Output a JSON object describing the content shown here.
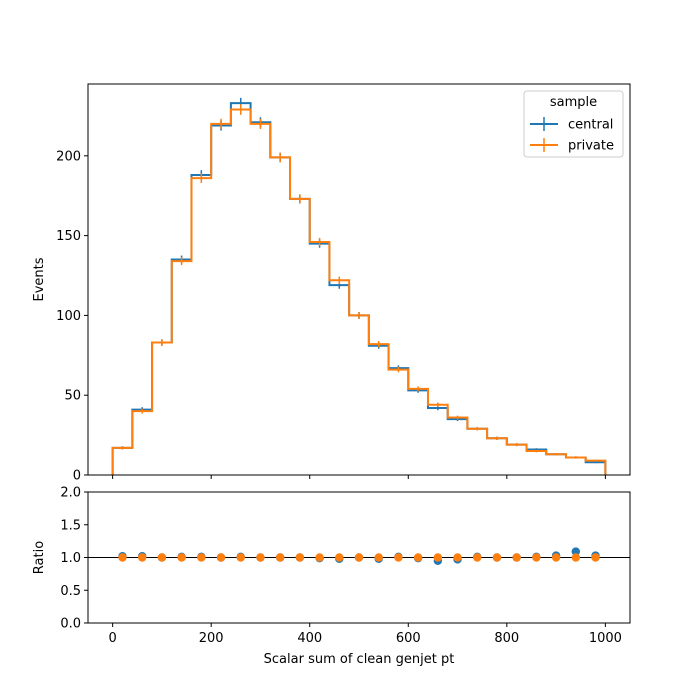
{
  "chart_data": {
    "type": "histogram-step-with-ratio",
    "xlabel": "Scalar sum of clean genjet pt",
    "bin_edges": [
      0,
      40,
      80,
      120,
      160,
      200,
      240,
      280,
      320,
      360,
      400,
      440,
      480,
      520,
      560,
      600,
      640,
      680,
      720,
      760,
      800,
      840,
      880,
      920,
      960,
      1000
    ],
    "main": {
      "ylabel": "Events",
      "xlim": [
        -50,
        1050
      ],
      "ylim": [
        0,
        245
      ],
      "xticks": [
        0,
        200,
        400,
        600,
        800,
        1000
      ],
      "yticks": [
        0,
        50,
        100,
        150,
        200
      ],
      "series": [
        {
          "name": "central",
          "color": "#1f77b4",
          "values": [
            17,
            41,
            83,
            135,
            188,
            219,
            233,
            221,
            199,
            173,
            145,
            119,
            100,
            81,
            67,
            53,
            42,
            35,
            29,
            23,
            19,
            16,
            13,
            11,
            8
          ],
          "errors": [
            1.0,
            1.5,
            2.0,
            2.5,
            3.0,
            3.2,
            3.3,
            3.2,
            3.0,
            2.8,
            2.6,
            2.3,
            2.1,
            1.9,
            1.7,
            1.5,
            1.4,
            1.2,
            1.1,
            1.0,
            0.9,
            0.8,
            0.7,
            0.7,
            0.6
          ]
        },
        {
          "name": "private",
          "color": "#ff7f0e",
          "values": [
            17,
            40,
            83,
            134,
            186,
            220,
            229,
            220,
            199,
            173,
            146,
            122,
            100,
            82,
            66,
            54,
            44,
            36,
            29,
            23,
            19,
            15,
            13,
            11,
            9
          ],
          "errors": [
            1.0,
            1.5,
            2.0,
            2.5,
            3.0,
            3.2,
            3.3,
            3.2,
            3.0,
            2.8,
            2.6,
            2.3,
            2.1,
            1.9,
            1.7,
            1.5,
            1.4,
            1.2,
            1.1,
            1.0,
            0.9,
            0.8,
            0.7,
            0.7,
            0.6
          ]
        }
      ],
      "legend": {
        "title": "sample",
        "position": "top-right"
      }
    },
    "ratio": {
      "ylabel": "Ratio",
      "ylim": [
        0,
        2
      ],
      "yticks": [
        "0.0",
        "0.5",
        "1.0",
        "1.5",
        "2.0"
      ],
      "reference_line": 1.0,
      "series": [
        {
          "name": "central",
          "color": "#1f77b4",
          "values": [
            1.02,
            1.02,
            1.0,
            1.01,
            1.01,
            1.0,
            1.01,
            1.0,
            1.0,
            1.0,
            0.99,
            0.98,
            1.0,
            0.98,
            1.01,
            0.99,
            0.95,
            0.97,
            1.01,
            1.0,
            1.0,
            1.01,
            1.03,
            1.09,
            1.03
          ]
        },
        {
          "name": "private",
          "color": "#ff7f0e",
          "values": [
            1.0,
            1.0,
            1.0,
            1.0,
            1.0,
            1.0,
            1.0,
            1.0,
            1.0,
            1.0,
            1.0,
            1.0,
            1.0,
            1.0,
            1.0,
            1.0,
            1.0,
            1.0,
            1.0,
            1.0,
            1.0,
            1.0,
            1.0,
            1.0,
            1.0
          ]
        }
      ]
    }
  }
}
